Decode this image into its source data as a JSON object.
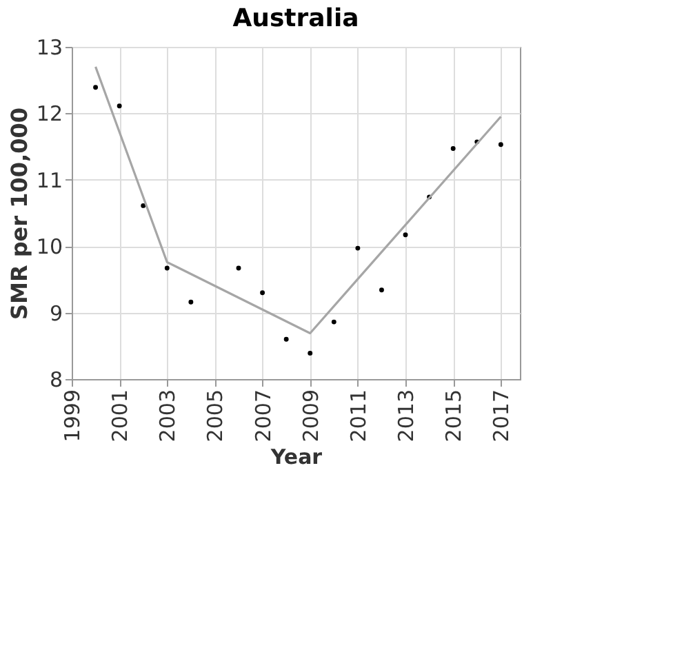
{
  "chart_data": {
    "type": "scatter",
    "title": "Australia",
    "xlabel": "Year",
    "ylabel": "SMR per 100,000",
    "series": [
      {
        "color": "#000000",
        "marker": "circle",
        "x": [
          2000,
          2001,
          2002,
          2003,
          2004,
          2006,
          2007,
          2008,
          2009,
          2010,
          2011,
          2012,
          2013,
          2014,
          2015,
          2016,
          2017
        ],
        "values": [
          12.39,
          12.11,
          10.61,
          9.67,
          9.16,
          9.67,
          9.3,
          8.6,
          8.39,
          8.86,
          9.97,
          9.34,
          10.17,
          10.74,
          11.47,
          11.57,
          11.53
        ]
      },
      {
        "type": "line",
        "color": "#a6a6a6",
        "marker": "none",
        "x": [
          2000,
          2003,
          2009,
          2017
        ],
        "values": [
          12.7,
          9.76,
          8.69,
          11.95
        ]
      }
    ],
    "xlim": [
      1999,
      2017.8
    ],
    "xticks": [
      1999,
      2001,
      2003,
      2005,
      2007,
      2009,
      2011,
      2013,
      2015,
      2017
    ],
    "ylim": [
      8,
      13
    ],
    "yticks": [
      8,
      9,
      10,
      11,
      12,
      13
    ],
    "grid": true
  }
}
